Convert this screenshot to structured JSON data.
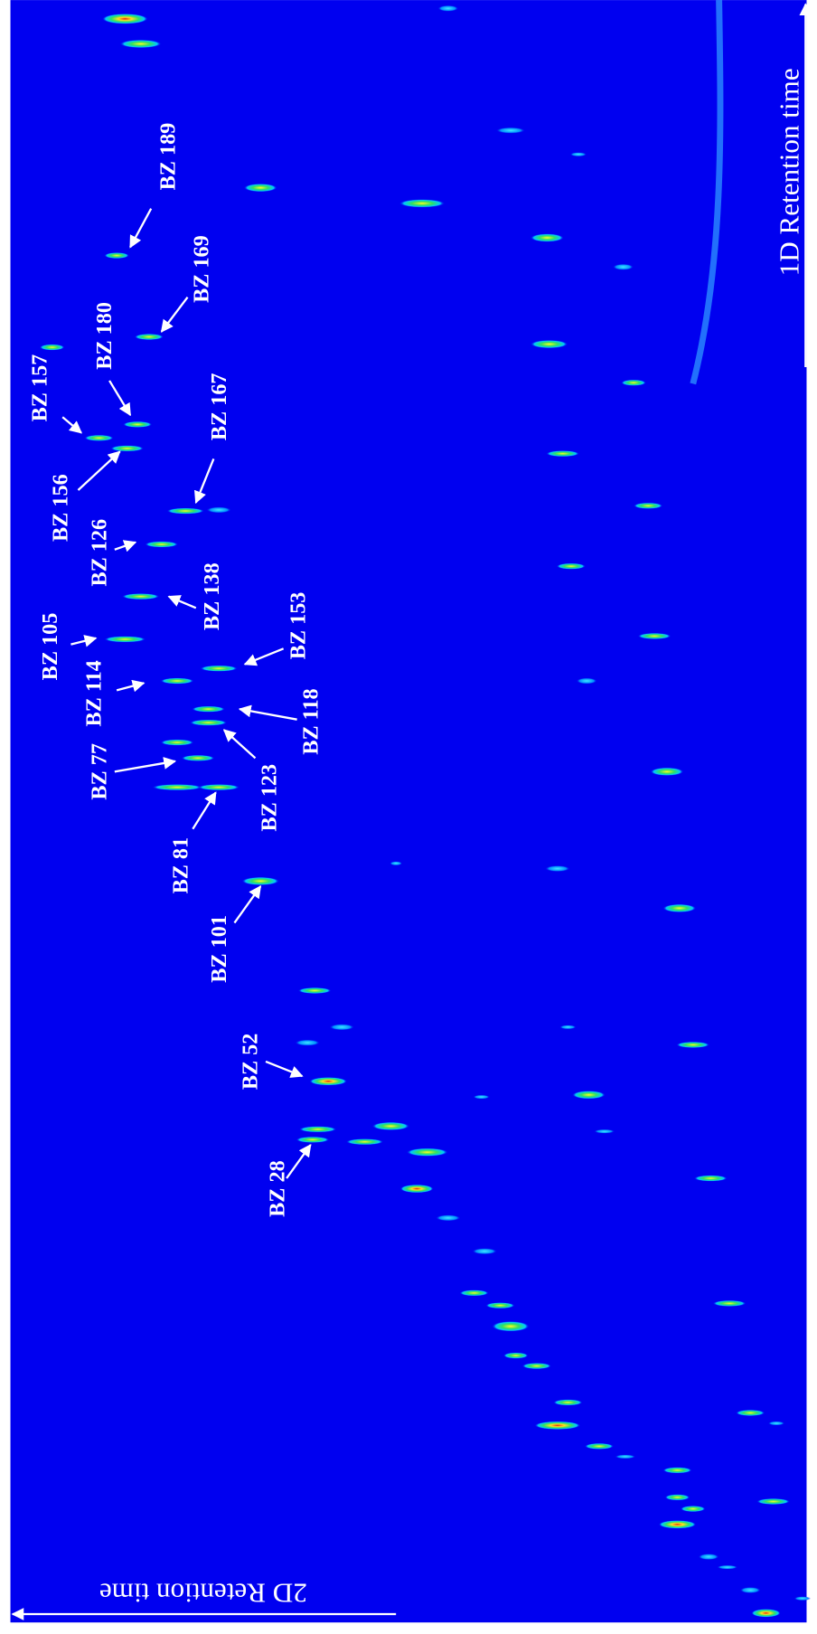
{
  "axes": {
    "x_label": "2D Retention time",
    "y_label": "1D Retention time"
  },
  "peaks": [
    "BZ 189",
    "BZ 169",
    "BZ 180",
    "BZ 157",
    "BZ 156",
    "BZ 167",
    "BZ 126",
    "BZ 138",
    "BZ 105",
    "BZ 114",
    "BZ 153",
    "BZ 118",
    "BZ 77",
    "BZ 123",
    "BZ 81",
    "BZ 101",
    "BZ 52",
    "BZ 28"
  ]
}
